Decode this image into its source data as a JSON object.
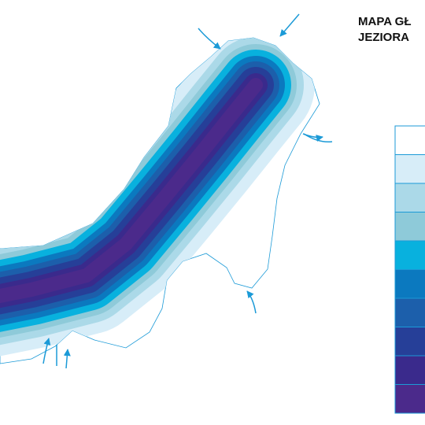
{
  "map": {
    "title_lines": [
      "MAPA GŁ",
      "JEZIORA"
    ],
    "legend": {
      "colors": [
        "#ffffff",
        "#d7edf8",
        "#abd9e8",
        "#8ecad9",
        "#08b1de",
        "#0b79bf",
        "#1c5fab",
        "#263f98",
        "#3a2a8c",
        "#4b2a8b"
      ]
    }
  }
}
